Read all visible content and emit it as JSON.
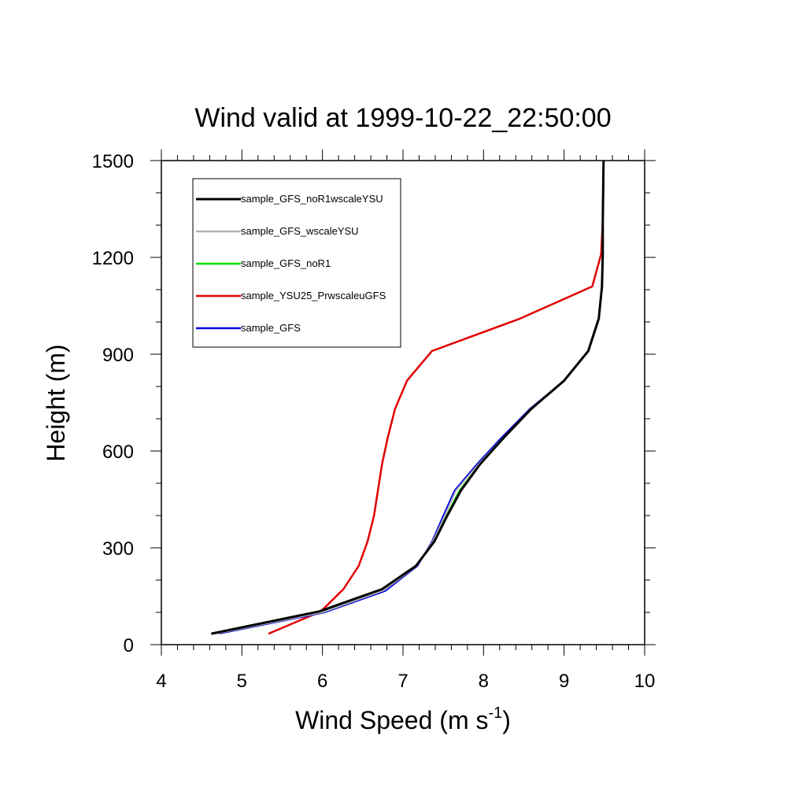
{
  "chart_data": {
    "type": "line",
    "title": "Wind valid at 1999-10-22_22:50:00",
    "xlabel": "Wind Speed (m s",
    "xlabel_sup": "-1",
    "xlabel_end": ")",
    "ylabel": "Height (m)",
    "xlim": [
      4,
      10
    ],
    "ylim": [
      0,
      1500
    ],
    "x_ticks": [
      "4",
      "5",
      "6",
      "7",
      "8",
      "9",
      "10"
    ],
    "y_ticks": [
      "0",
      "300",
      "600",
      "900",
      "1200",
      "1500"
    ],
    "legend_position": "top-left",
    "series": [
      {
        "name": "sample_GFS_noR1wscaleYSU",
        "color": "#000000",
        "x": [
          4.62,
          5.96,
          6.74,
          7.16,
          7.39,
          7.55,
          7.72,
          7.96,
          8.25,
          8.59,
          9.0,
          9.3,
          9.43,
          9.47,
          9.48,
          9.48,
          9.49
        ],
        "y": [
          34,
          103,
          172,
          244,
          320,
          400,
          478,
          560,
          641,
          730,
          818,
          910,
          1010,
          1110,
          1210,
          1310,
          1500
        ]
      },
      {
        "name": "sample_GFS_wscaleYSU",
        "color": "#b4b4b4",
        "x": [
          4.68,
          6.0,
          6.76,
          7.17,
          7.37,
          7.52,
          7.66,
          7.94,
          8.24,
          8.58,
          9.0,
          9.3,
          9.43,
          9.47,
          9.48,
          9.48,
          9.49
        ],
        "y": [
          34,
          100,
          168,
          244,
          320,
          400,
          478,
          560,
          641,
          730,
          818,
          910,
          1010,
          1110,
          1210,
          1310,
          1500
        ]
      },
      {
        "name": "sample_GFS_noR1",
        "color": "#00e000",
        "x": [
          4.64,
          5.98,
          6.75,
          7.16,
          7.38,
          7.54,
          7.7,
          7.96,
          8.25,
          8.59,
          9.0,
          9.3,
          9.43,
          9.47,
          9.48,
          9.48,
          9.49
        ],
        "y": [
          34,
          101,
          170,
          244,
          320,
          400,
          478,
          560,
          641,
          730,
          818,
          910,
          1010,
          1110,
          1210,
          1310,
          1500
        ]
      },
      {
        "name": "sample_YSU25_PrwscaleuGFS",
        "color": "#e00000",
        "x": [
          5.33,
          5.98,
          6.26,
          6.45,
          6.56,
          6.64,
          6.74,
          6.81,
          6.9,
          7.05,
          7.36,
          8.45,
          9.35,
          9.46,
          9.48,
          9.49
        ],
        "y": [
          34,
          103,
          172,
          244,
          320,
          400,
          560,
          641,
          730,
          818,
          910,
          1010,
          1110,
          1210,
          1310,
          1500
        ]
      },
      {
        "name": "sample_GFS",
        "color": "#0000e0",
        "x": [
          4.72,
          6.02,
          6.78,
          7.18,
          7.36,
          7.5,
          7.64,
          7.92,
          8.22,
          8.57,
          9.0,
          9.3,
          9.43,
          9.47,
          9.48,
          9.48,
          9.49
        ],
        "y": [
          34,
          99,
          166,
          244,
          320,
          400,
          478,
          560,
          641,
          730,
          818,
          910,
          1010,
          1110,
          1210,
          1310,
          1500
        ]
      }
    ]
  }
}
